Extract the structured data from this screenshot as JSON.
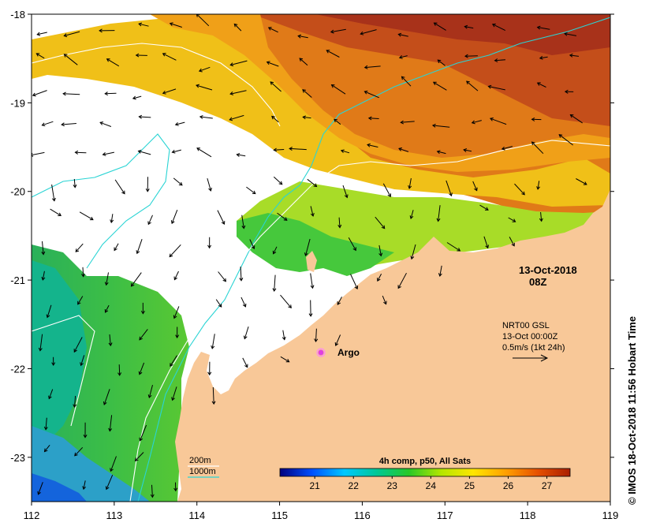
{
  "map": {
    "lon_range": [
      112,
      119
    ],
    "lat_range": [
      -23.5,
      -18
    ],
    "x_ticks": [
      "112",
      "113",
      "114",
      "115",
      "116",
      "117",
      "118",
      "119"
    ],
    "y_ticks": [
      "-18",
      "-19",
      "-20",
      "-21",
      "-22",
      "-23"
    ],
    "land_color": "#f8c898"
  },
  "annotations": {
    "date": "13-Oct-2018",
    "time": "08Z",
    "current_source": "NRT00 GSL",
    "current_date": "13-Oct 00:00Z",
    "current_scale": "0.5m/s (1kt 24h)",
    "argo_label": "Argo",
    "contour_200": "200m",
    "contour_1000": "1000m"
  },
  "colorbar": {
    "title": "4h comp, p50, All Sats",
    "ticks": [
      "21",
      "22",
      "23",
      "24",
      "25",
      "26",
      "27"
    ],
    "range": [
      20.1,
      27.6
    ],
    "colors": [
      "#00007f",
      "#0050ff",
      "#00c8ff",
      "#00c896",
      "#28c828",
      "#b4e600",
      "#ffe600",
      "#ffa000",
      "#e65000",
      "#aa1e00"
    ]
  },
  "credit": "© IMOS 18-Oct-2018 11:56 Hobart Time"
}
